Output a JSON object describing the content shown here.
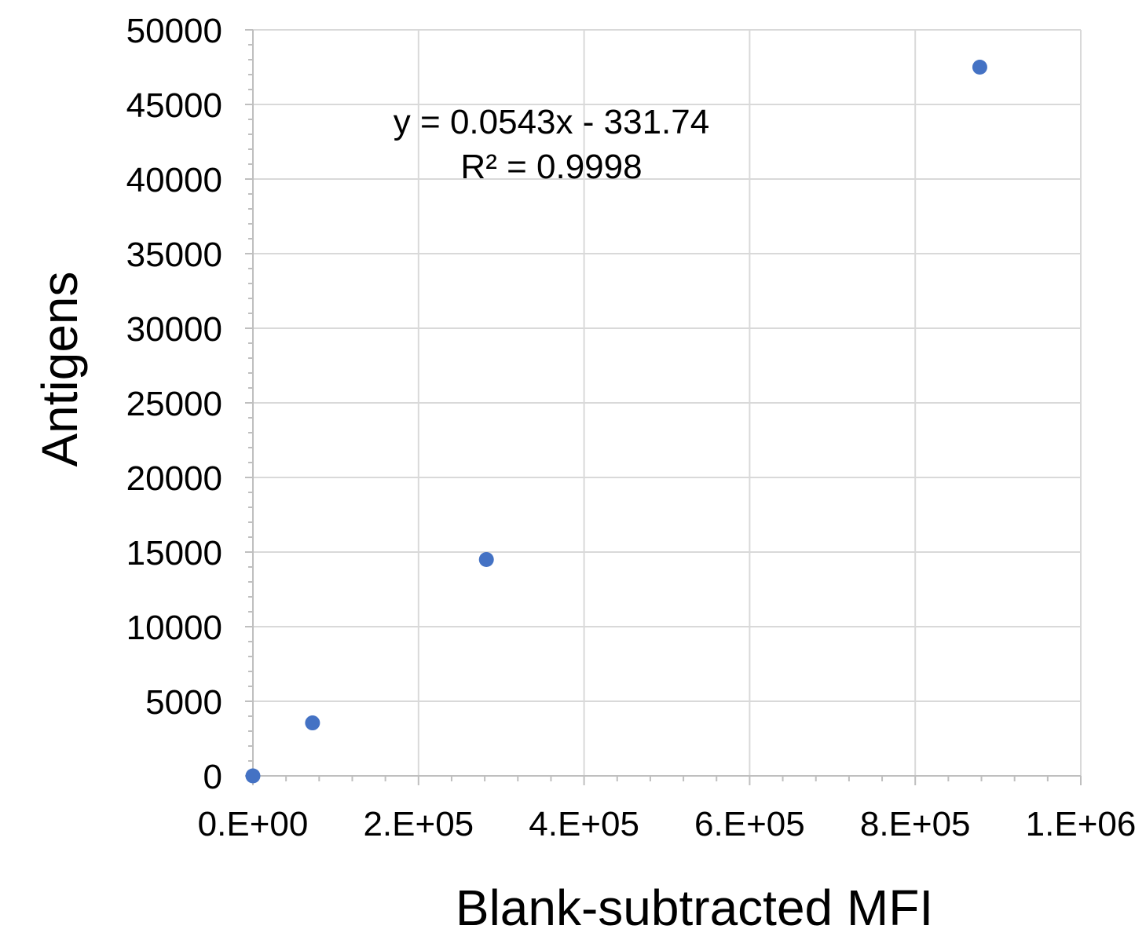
{
  "chart_data": {
    "type": "scatter",
    "title": "",
    "xlabel": "Blank-subtracted MFI",
    "ylabel": "Antigens",
    "xlim": [
      0,
      1000000
    ],
    "ylim": [
      0,
      50000
    ],
    "x_ticks": [
      0,
      200000,
      400000,
      600000,
      800000,
      1000000
    ],
    "x_tick_labels": [
      "0.E+00",
      "2.E+05",
      "4.E+05",
      "6.E+05",
      "8.E+05",
      "1.E+06"
    ],
    "y_ticks": [
      0,
      5000,
      10000,
      15000,
      20000,
      25000,
      30000,
      35000,
      40000,
      45000,
      50000
    ],
    "y_tick_labels": [
      "0",
      "5000",
      "10000",
      "15000",
      "20000",
      "25000",
      "30000",
      "35000",
      "40000",
      "45000",
      "50000"
    ],
    "grid": true,
    "series": [
      {
        "color": "#4472c4",
        "points": [
          {
            "x": 0,
            "y": 0
          },
          {
            "x": 72000,
            "y": 3550
          },
          {
            "x": 282000,
            "y": 14500
          },
          {
            "x": 878000,
            "y": 47500
          }
        ]
      }
    ],
    "trendline": {
      "equation": "y = 0.0543x - 331.74",
      "r_squared": "R² = 0.9998"
    }
  }
}
